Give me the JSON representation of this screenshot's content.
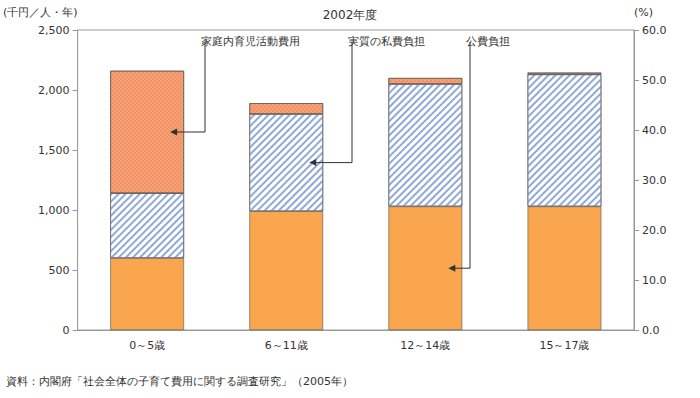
{
  "chart_data": {
    "type": "bar",
    "title": "2002年度",
    "y_label": "(千円／人・年)",
    "y2_label": "(%)",
    "source": "資料：内閣府「社会全体の子育て費用に関する調査研究」（2005年）",
    "categories": [
      "0～5歳",
      "6～11歳",
      "12～14歳",
      "15～17歳"
    ],
    "stacked": true,
    "series": [
      {
        "name": "公費負担",
        "color": "#f9a64e",
        "values": [
          600,
          990,
          1030,
          1030
        ]
      },
      {
        "name": "実質の私費負担",
        "color": "#8fa9d8",
        "values": [
          540,
          810,
          1020,
          1100
        ]
      },
      {
        "name": "家庭内育児活動費用",
        "color": "#f7a174",
        "values": [
          1020,
          90,
          50,
          15
        ]
      }
    ],
    "ylim": [
      0,
      2500
    ],
    "yticks": [
      0,
      500,
      {
        "value": 1000,
        "label": "1,000"
      },
      {
        "value": 1500,
        "label": "1,500"
      },
      {
        "value": 2000,
        "label": "2,000"
      },
      {
        "value": 2500,
        "label": "2,500"
      }
    ],
    "y2lim": [
      0,
      60
    ],
    "y2ticks": [
      {
        "value": 0,
        "label": "0.0"
      },
      {
        "value": 10,
        "label": "10.0"
      },
      {
        "value": 20,
        "label": "20.0"
      },
      {
        "value": 30,
        "label": "30.0"
      },
      {
        "value": 40,
        "label": "40.0"
      },
      {
        "value": 50,
        "label": "50.0"
      },
      {
        "value": 60,
        "label": "60.0"
      }
    ],
    "grid": false
  }
}
